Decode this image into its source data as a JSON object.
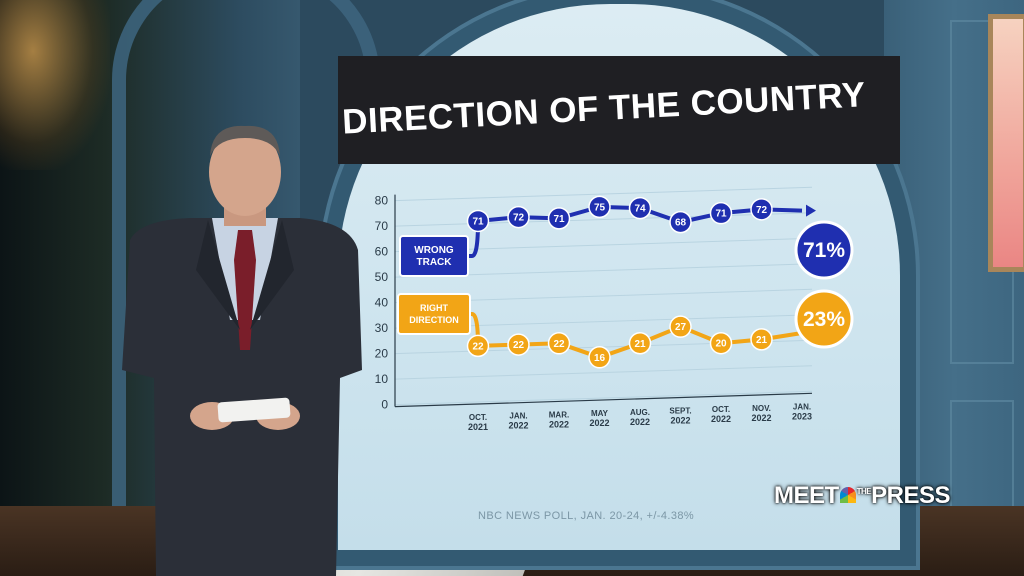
{
  "chart_data": {
    "type": "line",
    "title": "DIRECTION OF THE COUNTRY",
    "yticks": [
      0,
      10,
      20,
      30,
      40,
      50,
      60,
      70,
      80
    ],
    "ylim": [
      0,
      80
    ],
    "categories": [
      "OCT. 2021",
      "JAN. 2022",
      "MAR. 2022",
      "MAY 2022",
      "AUG. 2022",
      "SEPT. 2022",
      "OCT. 2022",
      "NOV. 2022",
      "JAN. 2023"
    ],
    "series": [
      {
        "name": "WRONG TRACK",
        "label_line1": "WRONG",
        "label_line2": "TRACK",
        "color": "#1f2fb0",
        "values": [
          71,
          72,
          71,
          75,
          74,
          68,
          71,
          72,
          71
        ],
        "final_label": "71%"
      },
      {
        "name": "RIGHT DIRECTION",
        "label_line1": "RIGHT",
        "label_line2": "DIRECTION",
        "color": "#f2a516",
        "values": [
          22,
          22,
          22,
          16,
          21,
          27,
          20,
          21,
          23
        ],
        "final_label": "23%"
      }
    ],
    "grid": true,
    "source": "NBC NEWS POLL, JAN. 20-24, +/-4.38%"
  },
  "brand": {
    "part1": "MEET",
    "part2": "THE",
    "part3": "PRESS"
  }
}
